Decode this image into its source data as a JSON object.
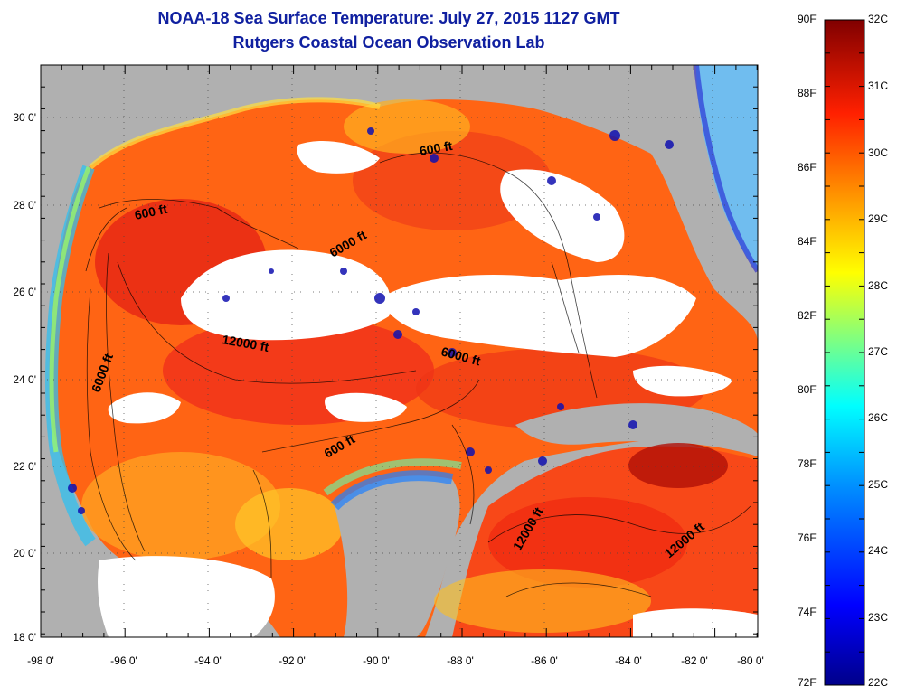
{
  "header": {
    "title": "NOAA-18 Sea Surface Temperature:  July 27, 2015 1127 GMT",
    "subtitle": "Rutgers Coastal Ocean Observation Lab"
  },
  "axes": {
    "x_ticks": [
      "-98 0'",
      "-96 0'",
      "-94 0'",
      "-92 0'",
      "-90 0'",
      "-88 0'",
      "-86 0'",
      "-84 0'",
      "-82 0'",
      "-80 0'"
    ],
    "y_ticks": [
      "30 0'",
      "28 0'",
      "26 0'",
      "24 0'",
      "22 0'",
      "20 0'",
      "18 0'"
    ]
  },
  "contours": {
    "labels": [
      "600 ft",
      "600 ft",
      "6000 ft",
      "12000 ft",
      "6000 ft",
      "6000 ft",
      "600 ft",
      "12000 ft",
      "12000 ft"
    ]
  },
  "colorbar": {
    "fahrenheit": [
      "90F",
      "88F",
      "86F",
      "84F",
      "82F",
      "80F",
      "78F",
      "76F",
      "74F",
      "72F"
    ],
    "celsius": [
      "32C",
      "31C",
      "30C",
      "29C",
      "28C",
      "27C",
      "26C",
      "25C",
      "24C",
      "23C",
      "22C"
    ]
  },
  "colors": {
    "land": "#b0b0b0",
    "cloud": "#ffffff",
    "title": "#1020a0"
  }
}
